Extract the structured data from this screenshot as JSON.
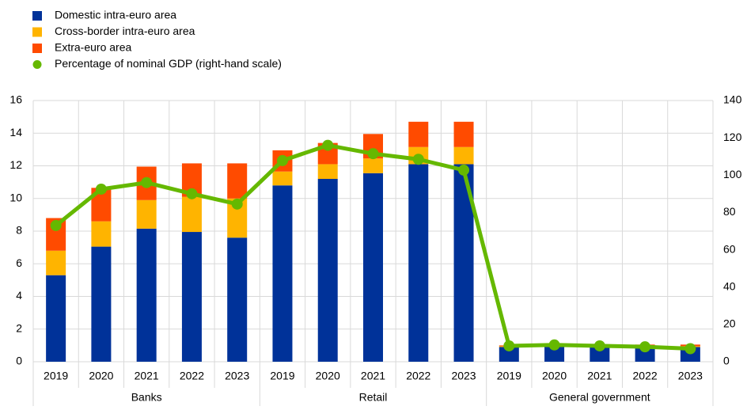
{
  "chart_data": {
    "type": "bar",
    "stacked": true,
    "categories": [
      "2019",
      "2020",
      "2021",
      "2022",
      "2023",
      "2019",
      "2020",
      "2021",
      "2022",
      "2023",
      "2019",
      "2020",
      "2021",
      "2022",
      "2023"
    ],
    "groups": [
      "Banks",
      "Retail",
      "General government"
    ],
    "series": [
      {
        "name": "Domestic intra-euro area",
        "color": "#003299",
        "values": [
          5.3,
          7.05,
          8.15,
          7.95,
          7.6,
          10.8,
          11.2,
          11.55,
          12.1,
          12.1,
          0.9,
          0.9,
          0.9,
          0.9,
          0.9
        ]
      },
      {
        "name": "Cross-border intra-euro area",
        "color": "#FFB400",
        "values": [
          1.5,
          1.55,
          1.75,
          2.15,
          2.4,
          0.85,
          0.9,
          0.9,
          1.05,
          1.05,
          0.05,
          0.05,
          0.05,
          0.05,
          0.05
        ]
      },
      {
        "name": "Extra-euro area",
        "color": "#FF4B00",
        "values": [
          2.0,
          2.05,
          2.05,
          2.05,
          2.15,
          1.3,
          1.3,
          1.5,
          1.55,
          1.55,
          0.05,
          0.05,
          0.05,
          0.1,
          0.1
        ]
      },
      {
        "name": "Percentage of nominal GDP (right-hand scale)",
        "color": "#65B800",
        "type": "line",
        "axis": "y2",
        "values": [
          73,
          92.5,
          96,
          90,
          84.5,
          107.8,
          116,
          111.5,
          108.5,
          102.7,
          8.5,
          9,
          8.5,
          8,
          7
        ]
      }
    ],
    "ylim": [
      0,
      16
    ],
    "yticks": [
      0,
      2,
      4,
      6,
      8,
      10,
      12,
      14,
      16
    ],
    "y2lim": [
      0,
      140
    ],
    "y2ticks": [
      0,
      20,
      40,
      60,
      80,
      100,
      120,
      140
    ],
    "grid": true,
    "legend": "top-left"
  }
}
